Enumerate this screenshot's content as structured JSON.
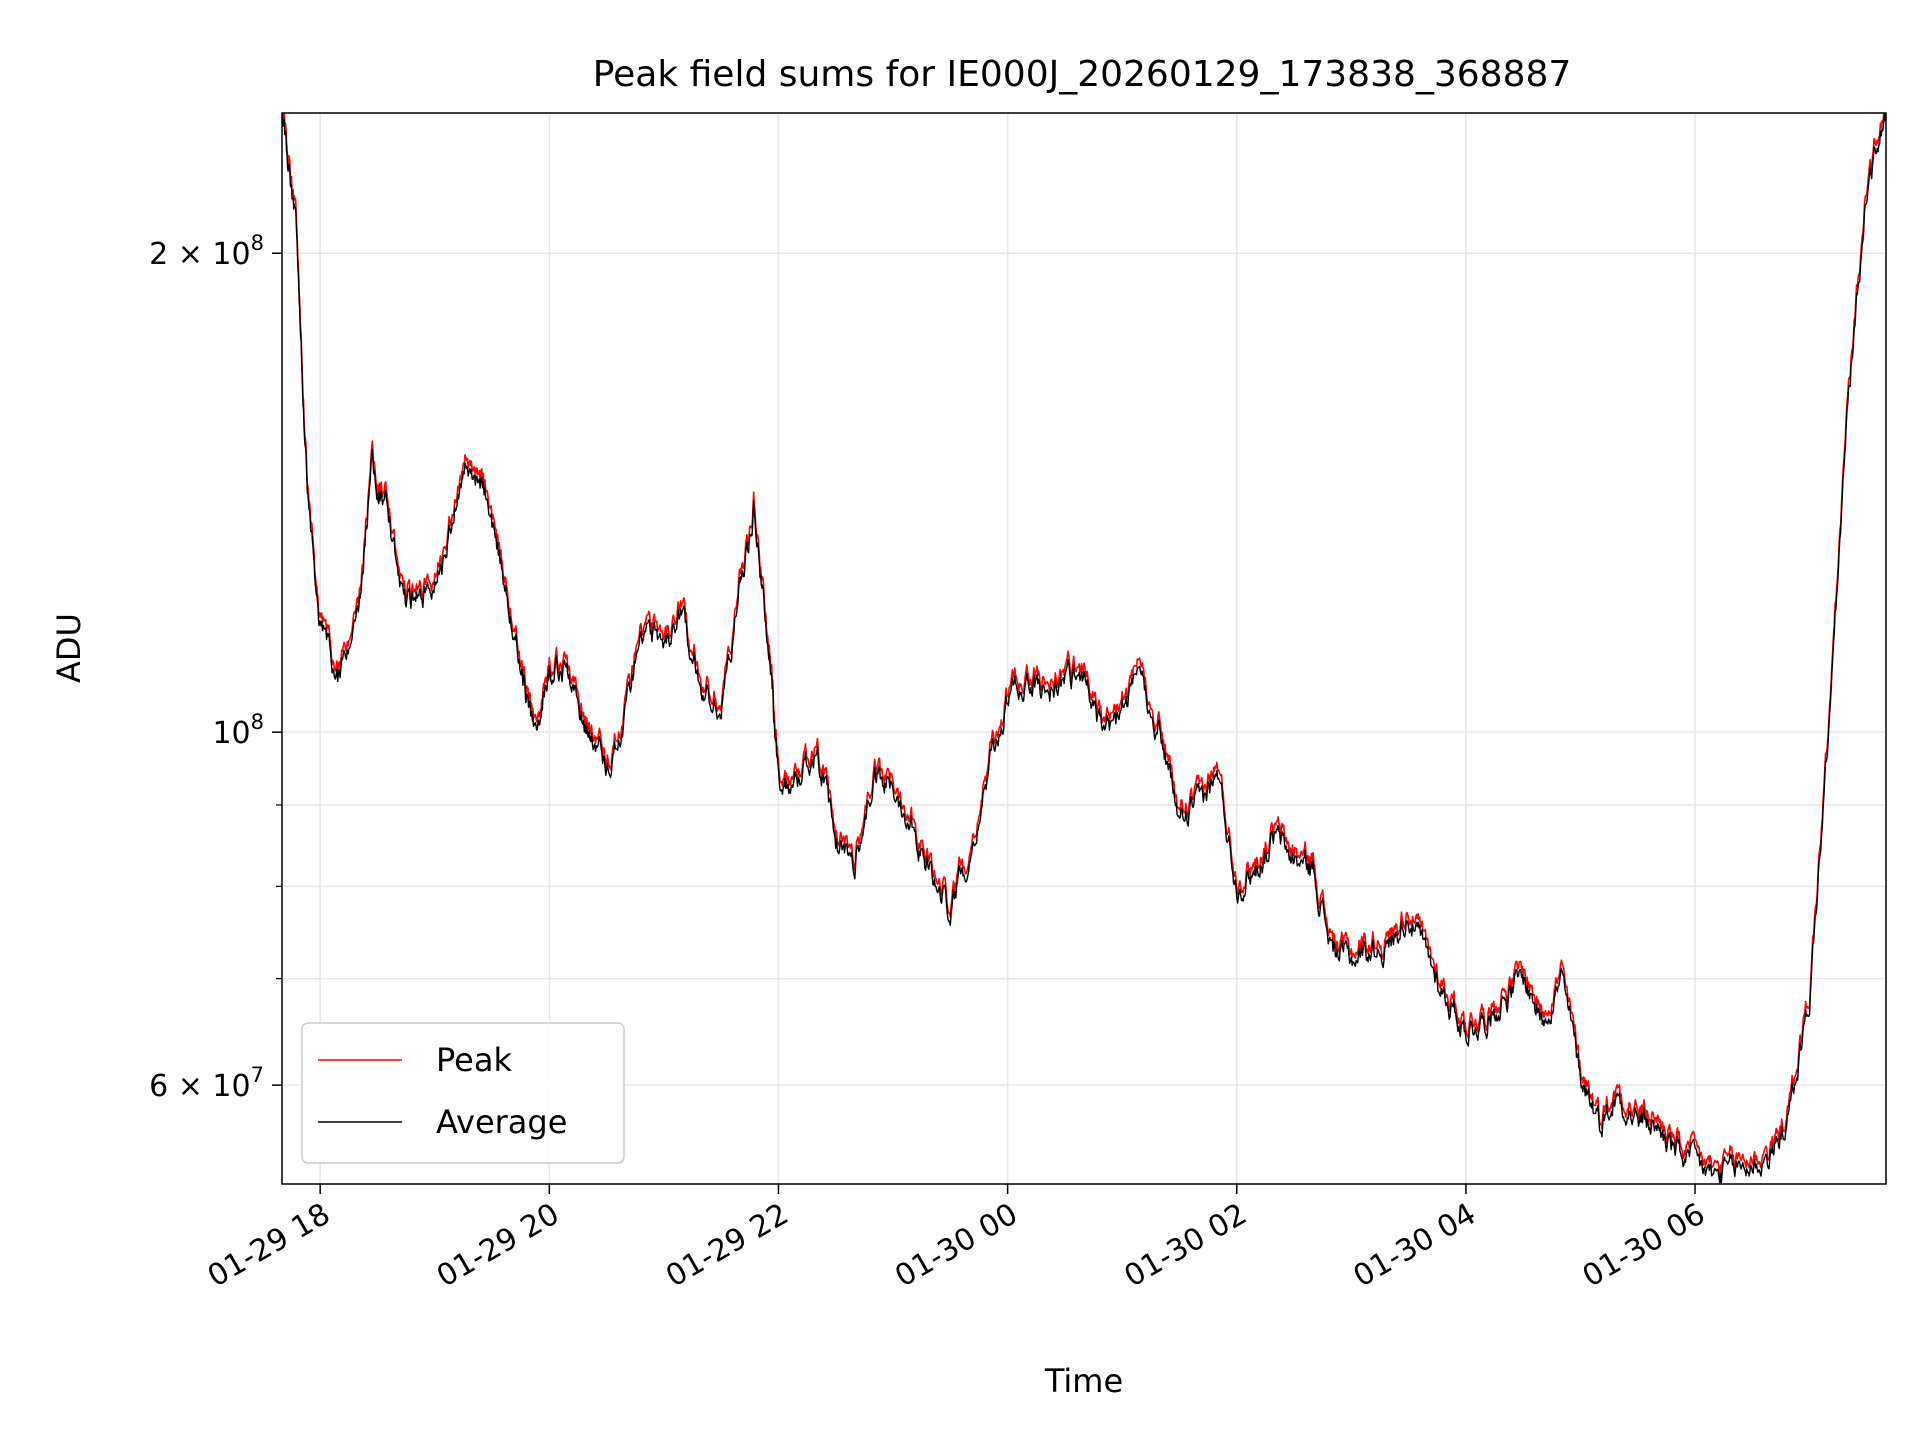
{
  "chart_data": {
    "type": "line",
    "title": "Peak field sums for IE000J_20260129_173838_368887",
    "xlabel": "Time",
    "ylabel": "ADU",
    "y_scale": "log",
    "grid": true,
    "legend_placement": "lower-left",
    "xlim": [
      "01-29 17:40",
      "01-30 07:40"
    ],
    "ylim": [
      52000000,
      245000000
    ],
    "x_ticks": [
      "01-29 18",
      "01-29 20",
      "01-29 22",
      "01-30 00",
      "01-30 02",
      "01-30 04",
      "01-30 06"
    ],
    "y_ticks": [
      {
        "value": 60000000,
        "mantissa": "6",
        "exponent": "7"
      },
      {
        "value": 100000000,
        "mantissa": "",
        "exponent": "8"
      },
      {
        "value": 200000000,
        "mantissa": "2",
        "exponent": "8"
      }
    ],
    "series": [
      {
        "name": "Peak",
        "color": "#ff0000",
        "offset_ratio": 1.012
      },
      {
        "name": "Average",
        "color": "#000000",
        "points": [
          [
            "01-29 17:40",
            245000000
          ],
          [
            "01-29 17:47",
            210000000
          ],
          [
            "01-29 17:53",
            145000000
          ],
          [
            "01-29 18:00",
            117000000
          ],
          [
            "01-29 18:10",
            108000000
          ],
          [
            "01-29 18:20",
            117000000
          ],
          [
            "01-29 18:27",
            148000000
          ],
          [
            "01-29 18:35",
            138000000
          ],
          [
            "01-29 18:45",
            120000000
          ],
          [
            "01-29 18:55",
            122000000
          ],
          [
            "01-29 19:05",
            127000000
          ],
          [
            "01-29 19:15",
            148000000
          ],
          [
            "01-29 19:25",
            143000000
          ],
          [
            "01-29 19:35",
            127000000
          ],
          [
            "01-29 19:45",
            111000000
          ],
          [
            "01-29 19:52",
            99000000
          ],
          [
            "01-29 20:00",
            110000000
          ],
          [
            "01-29 20:10",
            109000000
          ],
          [
            "01-29 20:20",
            100000000
          ],
          [
            "01-29 20:30",
            95000000
          ],
          [
            "01-29 20:40",
            103000000
          ],
          [
            "01-29 20:50",
            117000000
          ],
          [
            "01-29 21:00",
            113000000
          ],
          [
            "01-29 21:10",
            118000000
          ],
          [
            "01-29 21:20",
            106000000
          ],
          [
            "01-29 21:30",
            103000000
          ],
          [
            "01-29 21:40",
            124000000
          ],
          [
            "01-29 21:47",
            138000000
          ],
          [
            "01-29 21:55",
            113000000
          ],
          [
            "01-29 22:00",
            93000000
          ],
          [
            "01-29 22:10",
            93000000
          ],
          [
            "01-29 22:20",
            98000000
          ],
          [
            "01-29 22:30",
            85000000
          ],
          [
            "01-29 22:40",
            83000000
          ],
          [
            "01-29 22:50",
            93000000
          ],
          [
            "01-29 23:00",
            92000000
          ],
          [
            "01-29 23:10",
            88000000
          ],
          [
            "01-29 23:20",
            81000000
          ],
          [
            "01-29 23:30",
            77500000
          ],
          [
            "01-29 23:40",
            84000000
          ],
          [
            "01-29 23:50",
            94000000
          ],
          [
            "01-30 00:00",
            105000000
          ],
          [
            "01-30 00:10",
            108000000
          ],
          [
            "01-30 00:20",
            106000000
          ],
          [
            "01-30 00:30",
            108000000
          ],
          [
            "01-30 00:40",
            109000000
          ],
          [
            "01-30 00:50",
            99000000
          ],
          [
            "01-30 01:00",
            103000000
          ],
          [
            "01-30 01:10",
            108000000
          ],
          [
            "01-30 01:20",
            100000000
          ],
          [
            "01-30 01:30",
            88000000
          ],
          [
            "01-30 01:40",
            90000000
          ],
          [
            "01-30 01:50",
            94000000
          ],
          [
            "01-30 02:00",
            80000000
          ],
          [
            "01-30 02:10",
            82000000
          ],
          [
            "01-30 02:20",
            86000000
          ],
          [
            "01-30 02:30",
            83000000
          ],
          [
            "01-30 02:40",
            82000000
          ],
          [
            "01-30 02:50",
            73000000
          ],
          [
            "01-30 03:00",
            72000000
          ],
          [
            "01-30 03:10",
            73000000
          ],
          [
            "01-30 03:20",
            73500000
          ],
          [
            "01-30 03:30",
            77000000
          ],
          [
            "01-30 03:40",
            72000000
          ],
          [
            "01-30 03:50",
            68000000
          ],
          [
            "01-30 04:00",
            65000000
          ],
          [
            "01-30 04:10",
            66000000
          ],
          [
            "01-30 04:20",
            68000000
          ],
          [
            "01-30 04:30",
            70000000
          ],
          [
            "01-30 04:40",
            66000000
          ],
          [
            "01-30 04:50",
            70000000
          ],
          [
            "01-30 05:00",
            61000000
          ],
          [
            "01-30 05:10",
            57000000
          ],
          [
            "01-30 05:20",
            59000000
          ],
          [
            "01-30 05:30",
            57000000
          ],
          [
            "01-30 05:40",
            56500000
          ],
          [
            "01-30 05:50",
            54500000
          ],
          [
            "01-30 06:00",
            53500000
          ],
          [
            "01-30 06:10",
            52500000
          ],
          [
            "01-30 06:20",
            53000000
          ],
          [
            "01-30 06:30",
            53500000
          ],
          [
            "01-30 06:40",
            54000000
          ],
          [
            "01-30 06:50",
            58000000
          ],
          [
            "01-30 07:00",
            68000000
          ],
          [
            "01-30 07:10",
            100000000
          ],
          [
            "01-30 07:20",
            160000000
          ],
          [
            "01-30 07:30",
            220000000
          ],
          [
            "01-30 07:40",
            245000000
          ]
        ]
      }
    ]
  }
}
